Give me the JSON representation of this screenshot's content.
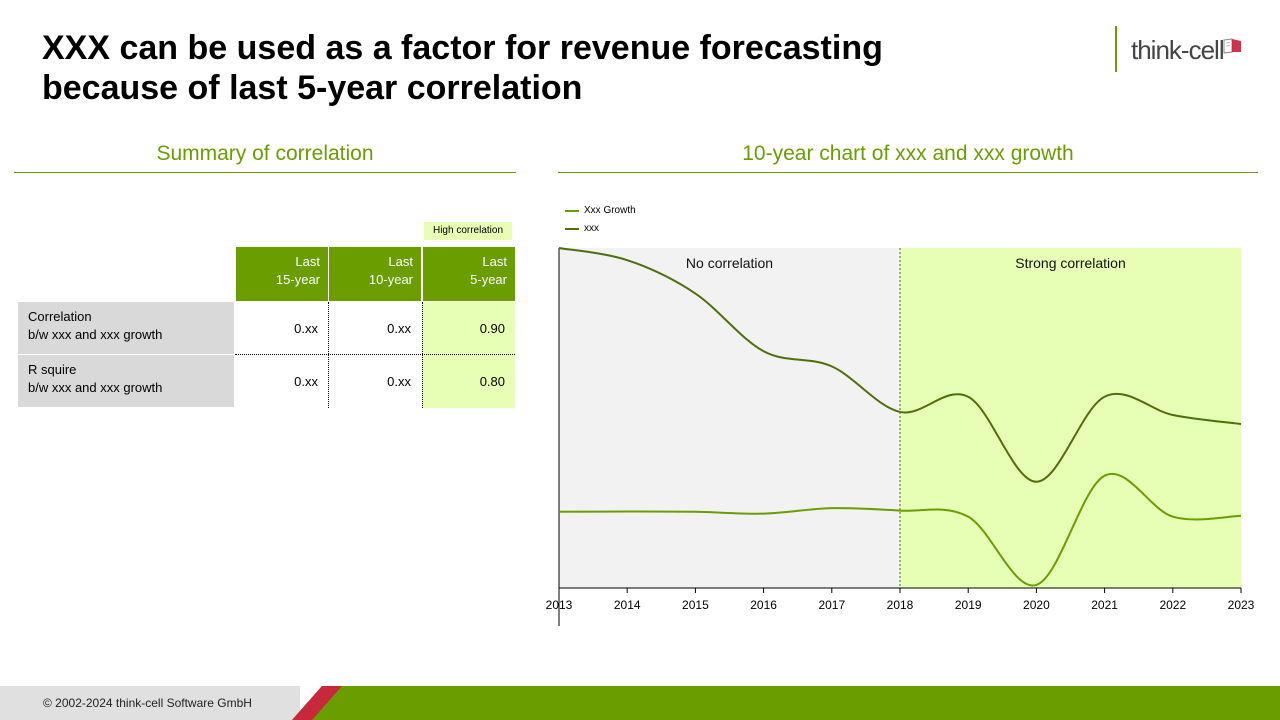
{
  "header": {
    "title_line1": "XXX can be used as a factor for revenue forecasting",
    "title_line2": "because of last 5-year correlation",
    "logo_text": "think-cell",
    "logo_icon": "book-icon"
  },
  "left_section": {
    "title": "Summary of correlation",
    "table": {
      "highlight_label": "High correlation",
      "columns": [
        {
          "line1": "Last",
          "line2": "15-year"
        },
        {
          "line1": "Last",
          "line2": "10-year"
        },
        {
          "line1": "Last",
          "line2": "5-year"
        }
      ],
      "rows": [
        {
          "line1": "Correlation",
          "line2": "b/w xxx and xxx growth",
          "values": [
            "0.xx",
            "0.xx",
            "0.90"
          ]
        },
        {
          "line1": "R squire",
          "line2": "b/w xxx and xxx growth",
          "values": [
            "0.xx",
            "0.xx",
            "0.80"
          ]
        }
      ]
    }
  },
  "right_section": {
    "title": "10-year chart of xxx and xxx growth"
  },
  "chart_data": {
    "type": "line",
    "title": "",
    "xlabel": "",
    "ylabel": "",
    "x": [
      "2013",
      "2014",
      "2015",
      "2016",
      "2017",
      "2018",
      "2019",
      "2020",
      "2021",
      "2022",
      "2023"
    ],
    "series": [
      {
        "name": "Xxx Growth",
        "color": "#6a9d00",
        "values": [
          13.1,
          13.2,
          13.1,
          12.5,
          14.3,
          13.5,
          11.5,
          -11.0,
          25.0,
          11.5,
          11.8
        ]
      },
      {
        "name": "xxx",
        "color": "#4e6f0a",
        "values": [
          100,
          96,
          85,
          66,
          61,
          46,
          51,
          23,
          51,
          45,
          42
        ]
      }
    ],
    "ylim": [
      -12,
      100
    ],
    "legend_position": "top-left",
    "grid": false,
    "regions": [
      {
        "label": "No correlation",
        "from": "2013",
        "to": "2018",
        "color": "#f2f2f2"
      },
      {
        "label": "Strong correlation",
        "from": "2018",
        "to": "2023",
        "color": "#e6ffb4"
      }
    ]
  },
  "footer": {
    "copyright": "© 2002-2024  think-cell Software  GmbH"
  }
}
